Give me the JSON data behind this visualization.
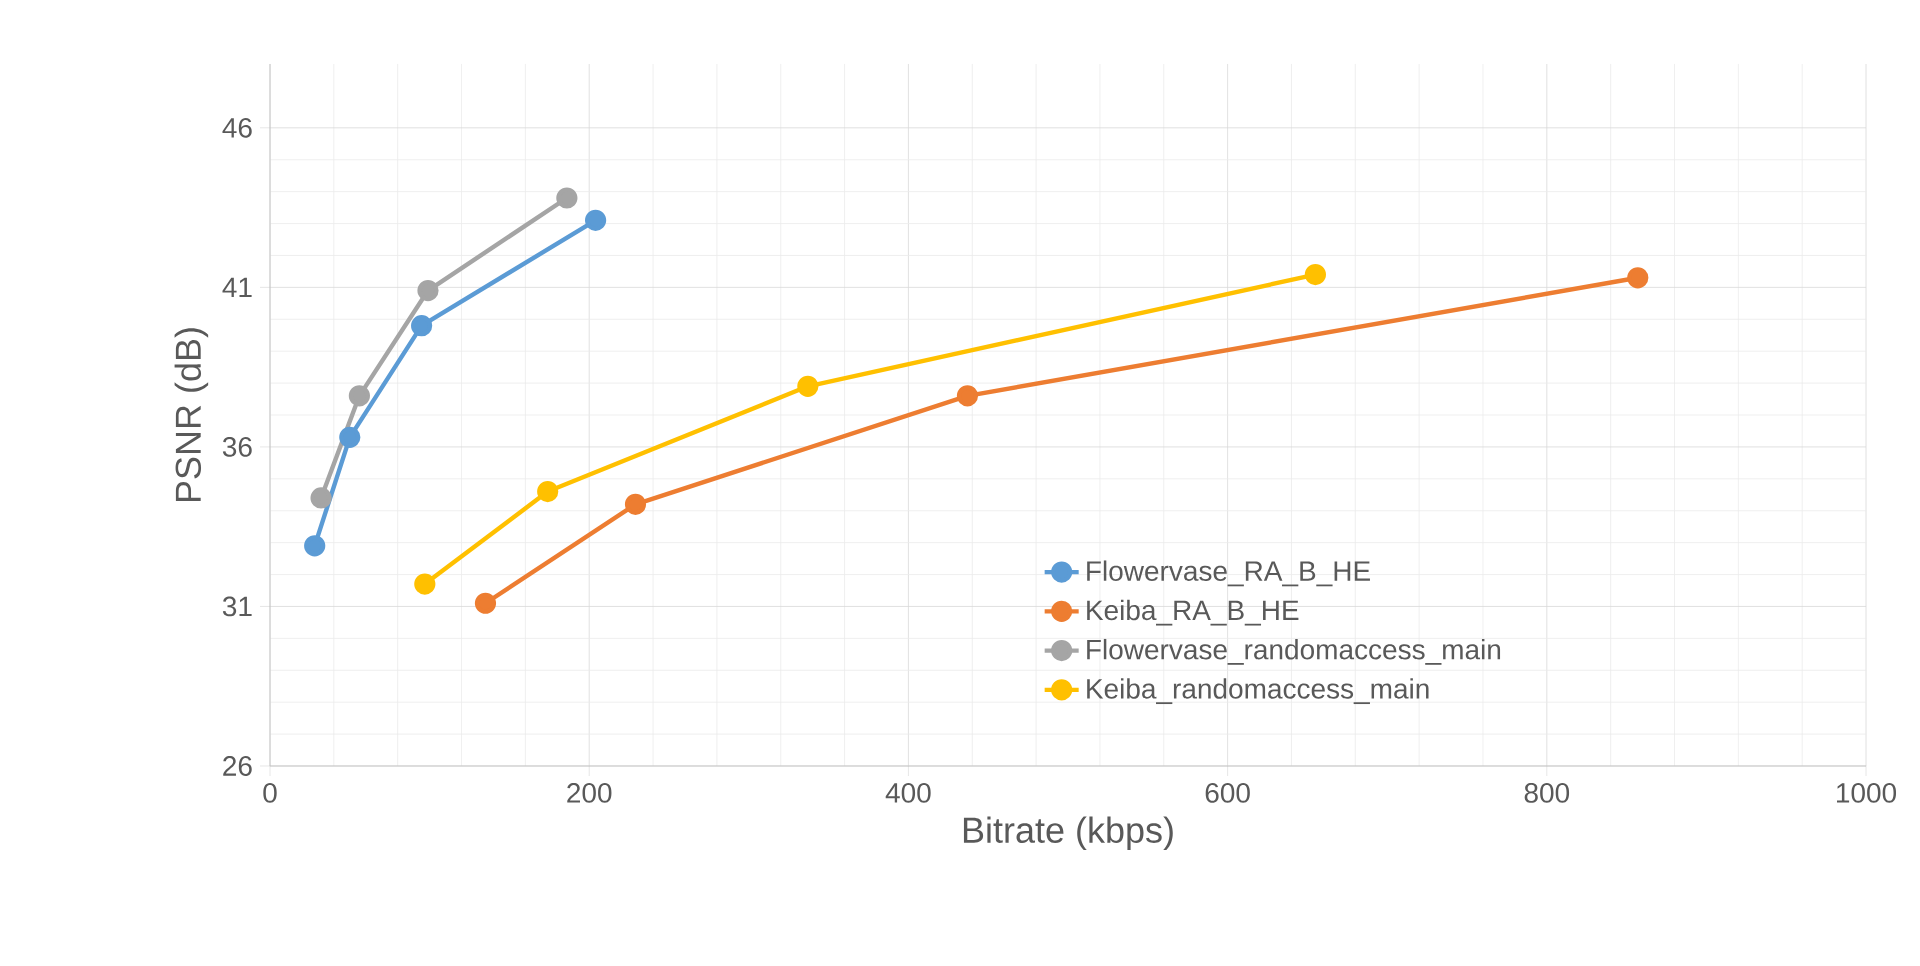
{
  "chart_data": {
    "type": "line",
    "xlabel": "Bitrate (kbps)",
    "ylabel": "PSNR (dB)",
    "xlim": [
      0,
      1000
    ],
    "xticks": [
      0,
      200,
      400,
      600,
      800,
      1000
    ],
    "ylim": [
      26,
      48
    ],
    "yticks": [
      26,
      31,
      36,
      41,
      46
    ],
    "grid": true,
    "legend": "bottom right",
    "marker": "circle",
    "line_style": "solid",
    "series": [
      {
        "name": "Flowervase_RA_B_HE",
        "color": "#5b9bd5",
        "x": [
          28,
          50,
          95,
          204
        ],
        "values": [
          32.9,
          36.3,
          39.8,
          43.1
        ]
      },
      {
        "name": "Keiba_RA_B_HE",
        "color": "#ed7d31",
        "x": [
          135,
          229,
          437,
          857
        ],
        "values": [
          31.1,
          34.2,
          37.6,
          41.3
        ]
      },
      {
        "name": "Flowervase_randomaccess_main",
        "color": "#a5a5a5",
        "x": [
          32,
          56,
          99,
          186
        ],
        "values": [
          34.4,
          37.6,
          40.9,
          43.8
        ]
      },
      {
        "name": "Keiba_randomaccess_main",
        "color": "#ffc000",
        "x": [
          97,
          174,
          337,
          655
        ],
        "values": [
          31.7,
          34.6,
          37.9,
          41.4
        ]
      }
    ]
  }
}
